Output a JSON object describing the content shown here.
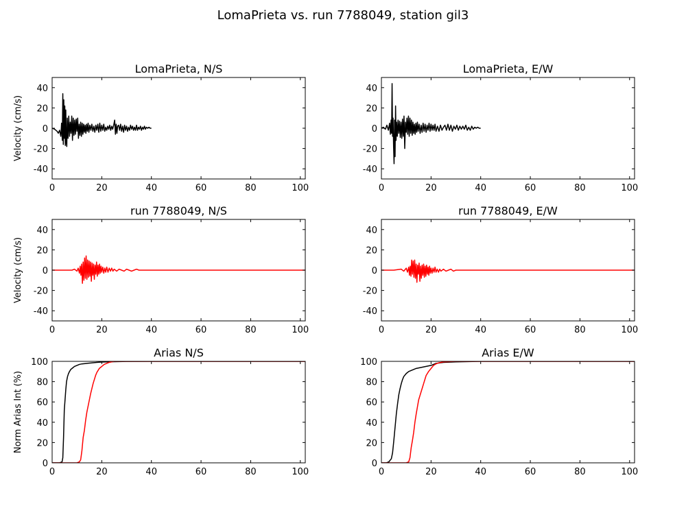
{
  "figure": {
    "suptitle": "LomaPrieta vs. run 7788049, station gil3"
  },
  "chart_data": [
    {
      "type": "line",
      "title": "LomaPrieta, N/S",
      "xlabel": "",
      "ylabel": "Velocity (cm/s)",
      "xlim": [
        0,
        102
      ],
      "ylim": [
        -50,
        50
      ],
      "xticks": [
        0,
        20,
        40,
        60,
        80,
        100
      ],
      "yticks": [
        -40,
        -20,
        0,
        20,
        40
      ],
      "color": "#000000",
      "series": [
        {
          "x": [
            0,
            1,
            2,
            2.5,
            3,
            3.5,
            3.8,
            4.1,
            4.3,
            4.5,
            4.7,
            4.9,
            5.1,
            5.3,
            5.5,
            5.7,
            5.9,
            6.1,
            6.4,
            6.7,
            7,
            7.3,
            7.6,
            7.9,
            8.2,
            8.5,
            8.8,
            9.1,
            9.4,
            9.7,
            10,
            10.3,
            10.6,
            10.9,
            11.2,
            11.5,
            11.8,
            12.1,
            12.4,
            12.7,
            13,
            13.3,
            13.6,
            13.9,
            14.2,
            14.5,
            14.8,
            15.2,
            15.6,
            16,
            16.4,
            16.8,
            17.2,
            17.6,
            18,
            18.4,
            18.8,
            19.2,
            19.6,
            20,
            20.4,
            20.8,
            21.2,
            21.6,
            22,
            22.4,
            22.8,
            23.2,
            23.6,
            24,
            24.4,
            24.8,
            25.2,
            25.5,
            25.8,
            26.1,
            26.4,
            26.8,
            27.2,
            27.6,
            28,
            28.4,
            28.8,
            29.2,
            29.6,
            30,
            30.4,
            30.8,
            31.2,
            31.6,
            32,
            32.4,
            32.8,
            33.2,
            33.6,
            34,
            34.4,
            34.8,
            35.2,
            35.6,
            36,
            36.4,
            36.8,
            37.2,
            37.6,
            38,
            38.5,
            39,
            39.5,
            40
          ],
          "y": [
            0,
            -1,
            -3,
            -5,
            -2,
            -8,
            5,
            -12,
            34,
            -16,
            28,
            -10,
            22,
            -17,
            18,
            -14,
            -18,
            10,
            -10,
            12,
            -8,
            6,
            -5,
            12,
            -12,
            10,
            -7,
            8,
            -6,
            9,
            -3,
            10,
            -10,
            4,
            -7,
            6,
            -8,
            5,
            -6,
            4,
            -4,
            3,
            -5,
            4,
            -3,
            5,
            -4,
            3,
            -2,
            4,
            -3,
            2,
            -4,
            3,
            -2,
            4,
            -4,
            5,
            -3,
            3,
            -2,
            4,
            -3,
            1,
            -2,
            2,
            -1,
            3,
            -2,
            2,
            -1,
            3,
            8,
            -6,
            4,
            -5,
            2,
            3,
            -2,
            4,
            -3,
            2,
            -4,
            3,
            -2,
            2,
            -3,
            1,
            -2,
            3,
            -1,
            2,
            -2,
            1,
            -2,
            3,
            -2,
            1,
            -1,
            2,
            -2,
            1,
            -1,
            2,
            -1,
            1,
            0,
            1,
            0,
            0
          ]
        }
      ]
    },
    {
      "type": "line",
      "title": "LomaPrieta, E/W",
      "xlabel": "",
      "ylabel": "",
      "xlim": [
        0,
        102
      ],
      "ylim": [
        -50,
        50
      ],
      "xticks": [
        0,
        20,
        40,
        60,
        80,
        100
      ],
      "yticks": [
        -40,
        -20,
        0,
        20,
        40
      ],
      "color": "#000000",
      "series": [
        {
          "x": [
            0,
            0.8,
            1.6,
            2.2,
            2.8,
            3.3,
            3.6,
            3.9,
            4.1,
            4.3,
            4.5,
            4.7,
            4.9,
            5.1,
            5.3,
            5.5,
            5.7,
            5.9,
            6.1,
            6.4,
            6.7,
            7,
            7.3,
            7.6,
            7.9,
            8.2,
            8.5,
            8.8,
            9.1,
            9.4,
            9.7,
            10,
            10.3,
            10.6,
            10.9,
            11.2,
            11.5,
            11.8,
            12.1,
            12.4,
            12.7,
            13,
            13.3,
            13.6,
            13.9,
            14.2,
            14.5,
            14.8,
            15.2,
            15.6,
            16,
            16.4,
            16.8,
            17.2,
            17.6,
            18,
            18.4,
            18.8,
            19.2,
            19.6,
            20,
            20.4,
            20.8,
            21.2,
            21.6,
            22,
            22.6,
            23.2,
            23.8,
            24.4,
            25,
            25.6,
            26.2,
            26.8,
            27.4,
            28,
            28.6,
            29.2,
            29.8,
            30.4,
            31,
            31.6,
            32.2,
            32.8,
            33.4,
            34,
            34.6,
            35.2,
            35.8,
            36.4,
            37,
            37.6,
            38.2,
            38.8,
            39.4,
            40
          ],
          "y": [
            0,
            1,
            -1,
            3,
            -2,
            5,
            -6,
            8,
            -5,
            44,
            -8,
            10,
            -18,
            -35,
            8,
            -28,
            22,
            -12,
            6,
            -8,
            8,
            -5,
            7,
            -9,
            6,
            -10,
            9,
            -8,
            12,
            -20,
            6,
            -4,
            10,
            -6,
            12,
            -8,
            10,
            -5,
            8,
            -7,
            6,
            -5,
            4,
            -6,
            5,
            -4,
            6,
            -3,
            4,
            -5,
            3,
            -4,
            5,
            -3,
            4,
            -4,
            3,
            -2,
            5,
            -3,
            4,
            -2,
            3,
            -2,
            4,
            -3,
            2,
            -3,
            3,
            -2,
            1,
            3,
            -2,
            4,
            -2,
            3,
            -3,
            2,
            -1,
            3,
            -2,
            2,
            -1,
            2,
            -1,
            3,
            -2,
            1,
            -2,
            2,
            -1,
            1,
            0,
            1,
            0,
            0
          ]
        }
      ]
    },
    {
      "type": "line",
      "title": "run 7788049, N/S",
      "xlabel": "",
      "ylabel": "Velocity (cm/s)",
      "xlim": [
        0,
        102
      ],
      "ylim": [
        -50,
        50
      ],
      "xticks": [
        0,
        20,
        40,
        60,
        80,
        100
      ],
      "yticks": [
        -40,
        -20,
        0,
        20,
        40
      ],
      "color": "#ff0000",
      "series": [
        {
          "x": [
            0,
            5,
            8,
            9,
            10,
            10.5,
            11,
            11.3,
            11.6,
            11.9,
            12.2,
            12.5,
            12.8,
            13.1,
            13.4,
            13.7,
            14,
            14.3,
            14.6,
            14.9,
            15.2,
            15.5,
            15.8,
            16.1,
            16.4,
            16.7,
            17,
            17.3,
            17.6,
            17.9,
            18.2,
            18.5,
            18.8,
            19.1,
            19.4,
            19.7,
            20,
            20.4,
            20.8,
            21.2,
            21.6,
            22,
            22.5,
            23,
            23.5,
            24,
            24.5,
            25,
            26,
            27,
            28,
            29,
            30,
            31,
            32,
            33,
            34,
            35,
            40,
            50,
            60,
            70,
            80,
            90,
            100,
            102
          ],
          "y": [
            0,
            0,
            0,
            1,
            -1,
            2,
            -3,
            4,
            -5,
            6,
            -13,
            8,
            -10,
            12,
            -8,
            14,
            -9,
            10,
            -7,
            9,
            -6,
            8,
            -11,
            7,
            -5,
            6,
            -9,
            5,
            -4,
            8,
            -6,
            5,
            -4,
            6,
            -3,
            4,
            -2,
            3,
            -3,
            2,
            -2,
            3,
            -2,
            2,
            -1,
            2,
            -1,
            1,
            -1,
            1,
            0,
            -1,
            1,
            0,
            -1,
            0,
            1,
            0,
            0,
            0,
            0,
            0,
            0,
            0,
            0,
            0
          ]
        }
      ]
    },
    {
      "type": "line",
      "title": "run 7788049, E/W",
      "xlabel": "",
      "ylabel": "",
      "xlim": [
        0,
        102
      ],
      "ylim": [
        -50,
        50
      ],
      "xticks": [
        0,
        20,
        40,
        60,
        80,
        100
      ],
      "yticks": [
        -40,
        -20,
        0,
        20,
        40
      ],
      "color": "#ff0000",
      "series": [
        {
          "x": [
            0,
            5,
            8,
            9,
            10,
            10.5,
            11,
            11.3,
            11.6,
            11.9,
            12.2,
            12.5,
            12.8,
            13.1,
            13.4,
            13.7,
            14,
            14.3,
            14.6,
            14.9,
            15.2,
            15.5,
            15.8,
            16.1,
            16.4,
            16.7,
            17,
            17.3,
            17.6,
            17.9,
            18.2,
            18.5,
            18.8,
            19.1,
            19.4,
            19.7,
            20,
            20.4,
            20.8,
            21.2,
            21.6,
            22,
            22.5,
            23,
            23.5,
            24,
            25,
            26,
            27,
            28,
            29,
            30,
            35,
            40,
            50,
            60,
            70,
            80,
            90,
            100,
            102
          ],
          "y": [
            0,
            0,
            1,
            -1,
            2,
            -2,
            3,
            -5,
            4,
            -6,
            10,
            -4,
            9,
            -7,
            10,
            -8,
            6,
            -12,
            5,
            -4,
            7,
            -11,
            4,
            -8,
            5,
            -5,
            6,
            -7,
            4,
            -6,
            5,
            -4,
            3,
            -5,
            4,
            -3,
            2,
            -3,
            2,
            -2,
            3,
            -2,
            1,
            -2,
            1,
            -1,
            1,
            -1,
            0,
            1,
            -1,
            0,
            0,
            0,
            0,
            0,
            0,
            0,
            0,
            0,
            0
          ]
        }
      ]
    },
    {
      "type": "line",
      "title": "Arias N/S",
      "xlabel": "",
      "ylabel": "Norm Arias Int (%)",
      "xlim": [
        0,
        102
      ],
      "ylim": [
        0,
        100
      ],
      "xticks": [
        0,
        20,
        40,
        60,
        80,
        100
      ],
      "yticks": [
        0,
        20,
        40,
        60,
        80,
        100
      ],
      "series": [
        {
          "color": "#000000",
          "x": [
            0,
            3,
            4,
            4.3,
            4.6,
            4.9,
            5.2,
            5.5,
            5.8,
            6.2,
            6.6,
            7,
            7.5,
            8,
            9,
            10,
            11,
            12,
            14,
            16,
            18,
            20,
            25,
            30,
            40,
            60,
            80,
            100,
            102
          ],
          "y": [
            0,
            0,
            1,
            5,
            25,
            52,
            62,
            72,
            80,
            85,
            88,
            90,
            92,
            93,
            95,
            96,
            97,
            97.5,
            98,
            98.5,
            99,
            99.3,
            99.7,
            99.9,
            100,
            100,
            100,
            100,
            100
          ]
        },
        {
          "color": "#ff0000",
          "x": [
            0,
            10,
            11,
            11.5,
            12,
            12.5,
            13,
            13.5,
            14,
            14.5,
            15,
            15.5,
            16,
            16.5,
            17,
            17.5,
            18,
            18.5,
            19,
            19.5,
            20,
            21,
            22,
            23,
            24,
            25,
            27,
            30,
            35,
            40,
            60,
            80,
            100,
            102
          ],
          "y": [
            0,
            0,
            1,
            3,
            12,
            25,
            32,
            42,
            50,
            56,
            62,
            68,
            73,
            78,
            82,
            86,
            89,
            91,
            93,
            94,
            95,
            97,
            98,
            99,
            99.5,
            100,
            100,
            100,
            100,
            100,
            100,
            100,
            100,
            100
          ]
        }
      ]
    },
    {
      "type": "line",
      "title": "Arias E/W",
      "xlabel": "",
      "ylabel": "",
      "xlim": [
        0,
        102
      ],
      "ylim": [
        0,
        100
      ],
      "xticks": [
        0,
        20,
        40,
        60,
        80,
        100
      ],
      "yticks": [
        0,
        20,
        40,
        60,
        80,
        100
      ],
      "series": [
        {
          "color": "#000000",
          "x": [
            0,
            2,
            3,
            4,
            4.5,
            5,
            5.5,
            6,
            6.5,
            7,
            7.5,
            8,
            8.5,
            9,
            10,
            11,
            12,
            13,
            14,
            16,
            18,
            20,
            22,
            25,
            30,
            40,
            60,
            80,
            100,
            102
          ],
          "y": [
            0,
            0,
            1,
            4,
            10,
            22,
            35,
            48,
            58,
            67,
            73,
            78,
            82,
            85,
            88,
            90,
            91,
            92,
            93,
            94,
            95,
            96,
            98,
            99,
            99.5,
            100,
            100,
            100,
            100,
            100
          ]
        },
        {
          "color": "#ff0000",
          "x": [
            0,
            10,
            11,
            11.5,
            12,
            12.5,
            13,
            13.5,
            14,
            14.5,
            15,
            15.5,
            16,
            16.5,
            17,
            17.5,
            18,
            18.5,
            19,
            20,
            21,
            22,
            23,
            24,
            25,
            30,
            40,
            60,
            80,
            100,
            102
          ],
          "y": [
            0,
            0,
            1,
            5,
            15,
            22,
            30,
            40,
            48,
            55,
            62,
            66,
            70,
            74,
            78,
            82,
            86,
            88,
            90,
            93,
            96,
            97.5,
            98.5,
            99,
            99.5,
            100,
            100,
            100,
            100,
            100,
            100
          ]
        }
      ]
    }
  ]
}
